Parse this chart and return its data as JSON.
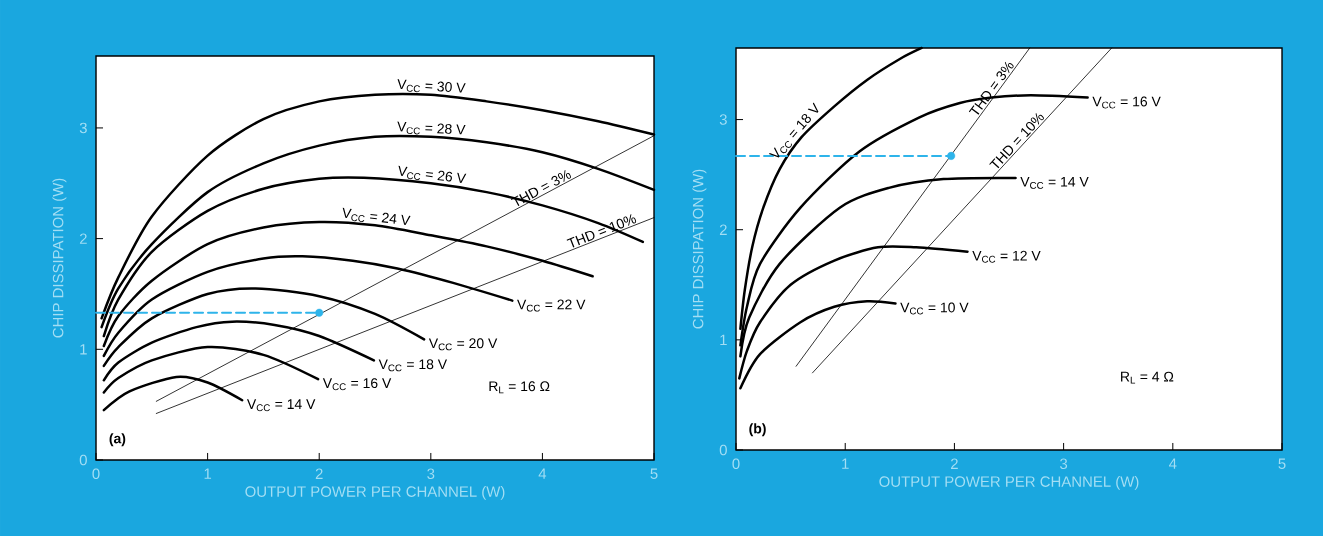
{
  "chart_data": [
    {
      "type": "line",
      "xlabel": "OUTPUT POWER PER CHANNEL (W)",
      "ylabel": "CHIP DISSIPATION (W)",
      "xlim": [
        0,
        5
      ],
      "ylim": [
        0,
        3.65
      ],
      "xticks": [
        0,
        1,
        2,
        3,
        4,
        5
      ],
      "yticks": [
        0,
        1,
        2,
        3
      ],
      "annotations": [
        "(a)",
        "R$_{L}$ = 16 Ω"
      ],
      "series": [
        {
          "name": "V$_{CC}$ = 30 V",
          "color": "#000000",
          "x": [
            0.05,
            0.2,
            0.5,
            1.0,
            1.5,
            2.0,
            2.5,
            3.0,
            3.5,
            4.0,
            4.5,
            5.0
          ],
          "values": [
            1.28,
            1.65,
            2.2,
            2.75,
            3.08,
            3.24,
            3.3,
            3.3,
            3.24,
            3.16,
            3.06,
            2.94
          ]
        },
        {
          "name": "V$_{CC}$ = 28 V",
          "color": "#000000",
          "x": [
            0.05,
            0.2,
            0.5,
            1.0,
            1.5,
            2.0,
            2.5,
            3.0,
            3.5,
            4.0,
            4.5,
            5.0
          ],
          "values": [
            1.2,
            1.55,
            1.95,
            2.42,
            2.68,
            2.84,
            2.92,
            2.92,
            2.87,
            2.78,
            2.63,
            2.44
          ]
        },
        {
          "name": "V$_{CC}$ = 26 V",
          "color": "#000000",
          "x": [
            0.07,
            0.2,
            0.5,
            1.0,
            1.5,
            2.0,
            2.4,
            3.0,
            3.5,
            4.0,
            4.5,
            4.9
          ],
          "values": [
            1.12,
            1.45,
            1.88,
            2.25,
            2.45,
            2.54,
            2.55,
            2.5,
            2.42,
            2.3,
            2.14,
            1.97
          ]
        },
        {
          "name": "V$_{CC}$ = 24 V",
          "color": "#000000",
          "x": [
            0.07,
            0.2,
            0.5,
            1.0,
            1.5,
            2.0,
            2.5,
            3.0,
            3.5,
            4.0,
            4.45
          ],
          "values": [
            1.03,
            1.3,
            1.62,
            1.95,
            2.1,
            2.15,
            2.12,
            2.03,
            1.93,
            1.8,
            1.66
          ]
        },
        {
          "name": "V$_{CC}$ = 22 V",
          "color": "#000000",
          "x": [
            0.07,
            0.2,
            0.5,
            1.0,
            1.5,
            1.85,
            2.3,
            2.7,
            3.2,
            3.73
          ],
          "values": [
            0.94,
            1.15,
            1.45,
            1.7,
            1.82,
            1.84,
            1.8,
            1.73,
            1.6,
            1.44
          ]
        },
        {
          "name": "V$_{CC}$ = 20 V",
          "color": "#000000",
          "x": [
            0.07,
            0.2,
            0.5,
            1.0,
            1.43,
            2.0,
            2.5,
            2.94
          ],
          "values": [
            0.85,
            1.02,
            1.28,
            1.5,
            1.55,
            1.48,
            1.32,
            1.09
          ]
        },
        {
          "name": "V$_{CC}$ = 18 V",
          "color": "#000000",
          "x": [
            0.07,
            0.2,
            0.5,
            0.9,
            1.22,
            1.6,
            2.0,
            2.49
          ],
          "values": [
            0.72,
            0.88,
            1.06,
            1.2,
            1.25,
            1.22,
            1.12,
            0.9
          ]
        },
        {
          "name": "V$_{CC}$ = 16 V",
          "color": "#000000",
          "x": [
            0.07,
            0.2,
            0.5,
            1.0,
            1.5,
            1.99
          ],
          "values": [
            0.61,
            0.74,
            0.9,
            1.02,
            0.95,
            0.73
          ]
        },
        {
          "name": "V$_{CC}$ = 14 V",
          "color": "#000000",
          "x": [
            0.07,
            0.3,
            0.72,
            1.0,
            1.31
          ],
          "values": [
            0.45,
            0.62,
            0.75,
            0.7,
            0.54
          ]
        },
        {
          "name": "THD = 3%",
          "color": "#000000",
          "x": [
            0.54,
            5.0
          ],
          "values": [
            0.53,
            2.93
          ]
        },
        {
          "name": "THD = 10%",
          "color": "#000000",
          "x": [
            0.54,
            5.0
          ],
          "values": [
            0.42,
            2.19
          ]
        },
        {
          "type": "line",
          "color": "#2eb4ea",
          "line_style": "dashed",
          "x": [
            0,
            2.0
          ],
          "values": [
            1.33,
            1.33
          ]
        },
        {
          "type": "scatter",
          "color": "#2eb4ea",
          "marker": "circle",
          "x": [
            2.0
          ],
          "values": [
            1.33
          ]
        }
      ]
    },
    {
      "type": "line",
      "xlabel": "OUTPUT POWER PER CHANNEL (W)",
      "ylabel": "CHIP DISSIPATION (W)",
      "xlim": [
        0,
        5
      ],
      "ylim": [
        0,
        3.65
      ],
      "xticks": [
        0,
        1,
        2,
        3,
        4,
        5
      ],
      "yticks": [
        0,
        1,
        2,
        3
      ],
      "annotations": [
        "(b)",
        "R$_{L}$ = 4 Ω"
      ],
      "series": [
        {
          "name": "V$_{CC}$ = 18 V",
          "color": "#000000",
          "x": [
            0.04,
            0.08,
            0.15,
            0.25,
            0.4,
            0.6,
            0.9,
            1.2,
            1.5,
            1.7
          ],
          "values": [
            1.1,
            1.45,
            1.85,
            2.2,
            2.55,
            2.84,
            3.12,
            3.36,
            3.55,
            3.65
          ]
        },
        {
          "name": "V$_{CC}$ = 16 V",
          "color": "#000000",
          "x": [
            0.04,
            0.1,
            0.22,
            0.59,
            1.13,
            1.68,
            2.05,
            2.34,
            2.7,
            3.22
          ],
          "values": [
            0.95,
            1.3,
            1.69,
            2.2,
            2.71,
            3.02,
            3.15,
            3.2,
            3.22,
            3.2
          ]
        },
        {
          "name": "V$_{CC}$ = 14 V",
          "color": "#000000",
          "x": [
            0.04,
            0.12,
            0.4,
            0.95,
            1.4,
            1.9,
            2.56
          ],
          "values": [
            0.85,
            1.2,
            1.69,
            2.2,
            2.38,
            2.46,
            2.47
          ]
        },
        {
          "name": "V$_{CC}$ = 12 V",
          "color": "#000000",
          "x": [
            0.03,
            0.1,
            0.22,
            0.5,
            0.9,
            1.3,
            1.65,
            2.12
          ],
          "values": [
            0.65,
            0.9,
            1.16,
            1.5,
            1.72,
            1.84,
            1.84,
            1.8
          ]
        },
        {
          "name": "V$_{CC}$ = 10 V",
          "color": "#000000",
          "x": [
            0.04,
            0.22,
            0.59,
            0.9,
            1.2,
            1.46
          ],
          "values": [
            0.56,
            0.87,
            1.16,
            1.3,
            1.35,
            1.33
          ]
        },
        {
          "name": "THD = 3%",
          "color": "#000000",
          "x": [
            0.55,
            2.69
          ],
          "values": [
            0.76,
            3.65
          ]
        },
        {
          "name": "THD = 10%",
          "color": "#000000",
          "x": [
            0.7,
            3.44
          ],
          "values": [
            0.7,
            3.65
          ]
        },
        {
          "type": "line",
          "color": "#2eb4ea",
          "line_style": "dashed",
          "x": [
            0,
            1.97
          ],
          "values": [
            2.67,
            2.67
          ]
        },
        {
          "type": "scatter",
          "color": "#2eb4ea",
          "marker": "circle",
          "x": [
            1.97
          ],
          "values": [
            2.67
          ]
        }
      ]
    }
  ]
}
